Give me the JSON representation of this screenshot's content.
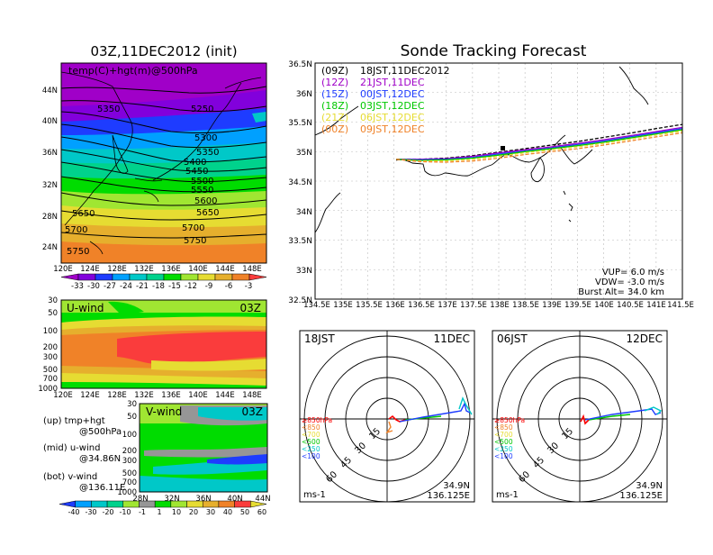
{
  "left_title": "03Z,11DEC2012 (init)",
  "right_title": "Sonde Tracking Forecast",
  "map_panel": {
    "label": "temp(C)+hgt(m)@500hPa",
    "lat_ticks": [
      "44N",
      "40N",
      "36N",
      "32N",
      "28N",
      "24N"
    ],
    "lon_ticks": [
      "120E",
      "124E",
      "128E",
      "132E",
      "136E",
      "140E",
      "144E",
      "148E"
    ],
    "contour_labels": [
      "5250",
      "5300",
      "5350",
      "5350",
      "5400",
      "5450",
      "5500",
      "5550",
      "5600",
      "5650",
      "5650",
      "5700",
      "5700",
      "5750",
      "5750"
    ],
    "colorbar_ticks": [
      "-33",
      "-30",
      "-27",
      "-24",
      "-21",
      "-18",
      "-15",
      "-12",
      "-9",
      "-6",
      "-3"
    ],
    "colorbar_colors": [
      "#a000c8",
      "#8200dc",
      "#1e3cff",
      "#00a0ff",
      "#00c8c8",
      "#00d28c",
      "#00dc00",
      "#a0e632",
      "#e6dc32",
      "#e6af2d",
      "#f08228",
      "#fa3c3c"
    ]
  },
  "uwind_panel": {
    "label": "U-wind",
    "time": "03Z",
    "y_ticks": [
      "30",
      "50",
      "100",
      "200",
      "300",
      "500",
      "700",
      "1000"
    ],
    "x_ticks": [
      "120E",
      "124E",
      "128E",
      "132E",
      "136E",
      "140E",
      "144E",
      "148E"
    ]
  },
  "vwind_panel": {
    "label": "V-wind",
    "time": "03Z",
    "y_ticks": [
      "30",
      "50",
      "100",
      "200",
      "300",
      "500",
      "700",
      "1000"
    ],
    "x_ticks": [
      "28N",
      "32N",
      "36N",
      "40N",
      "44N"
    ],
    "colorbar_ticks": [
      "-40",
      "-30",
      "-20",
      "-10",
      "-1",
      "1",
      "10",
      "20",
      "30",
      "40",
      "50",
      "60"
    ],
    "colorbar_colors": [
      "#1e3cff",
      "#00a0ff",
      "#00c8c8",
      "#00d28c",
      "#a0e632",
      "#969696",
      "#00dc00",
      "#a0e632",
      "#e6dc32",
      "#e6af2d",
      "#f08228",
      "#fa3c3c",
      "#e6dc32"
    ]
  },
  "notes": {
    "up_1": "(up) tmp+hgt",
    "up_2": "@500hPa",
    "mid_1": "(mid) u-wind",
    "mid_2": "@34.86N",
    "bot_1": "(bot) v-wind",
    "bot_2": "@136.11E"
  },
  "track_panel": {
    "y_ticks": [
      "36.5N",
      "36N",
      "35.5N",
      "35N",
      "34.5N",
      "34N",
      "33.5N",
      "33N",
      "32.5N"
    ],
    "x_ticks": [
      "134.5E",
      "135E",
      "135.5E",
      "136E",
      "136.5E",
      "137E",
      "137.5E",
      "138E",
      "138.5E",
      "139E",
      "139.5E",
      "140E",
      "140.5E",
      "141E",
      "141.5E"
    ],
    "legend": [
      {
        "run": "(09Z)",
        "time": "18JST,11DEC2012",
        "color": "#000000"
      },
      {
        "run": "(12Z)",
        "time": "21JST,11DEC",
        "color": "#a000c8"
      },
      {
        "run": "(15Z)",
        "time": "00JST,12DEC",
        "color": "#1e3cff"
      },
      {
        "run": "(18Z)",
        "time": "03JST,12DEC",
        "color": "#00c800"
      },
      {
        "run": "(21Z)",
        "time": "06JST,12DEC",
        "color": "#e6dc32"
      },
      {
        "run": "(00Z)",
        "time": "09JST,12DEC",
        "color": "#f08228"
      }
    ],
    "vup": "VUP=  6.0  m/s",
    "vdw": "VDW= -3.0  m/s",
    "burst": "Burst Alt= 34.0  km"
  },
  "polar_left": {
    "time": "18JST",
    "date": "11DEC",
    "ring_labels": [
      "15",
      "30",
      "45",
      "60"
    ],
    "unit": "ms-1",
    "lat": "34.9N",
    "lon": "136.125E"
  },
  "polar_right": {
    "time": "06JST",
    "date": "12DEC",
    "ring_labels": [
      "15",
      "30",
      "45",
      "60"
    ],
    "unit": "ms-1",
    "lat": "34.9N",
    "lon": "136.125E"
  },
  "pressure_legend": [
    {
      "label": "≥850hPa",
      "color": "#fa0000"
    },
    {
      "label": "<850",
      "color": "#f08228"
    },
    {
      "label": "<700",
      "color": "#e6dc32"
    },
    {
      "label": "<500",
      "color": "#00c800"
    },
    {
      "label": "<250",
      "color": "#00c8c8"
    },
    {
      "label": "<100",
      "color": "#1e3cff"
    }
  ],
  "chart_data": [
    {
      "type": "heatmap",
      "title": "03Z,11DEC2012 (init)",
      "variable": "temp(C)+hgt(m)@500hPa",
      "xlim": [
        "120E",
        "150E"
      ],
      "ylim": [
        "22N",
        "48N"
      ],
      "colorbar_levels": [
        -33,
        -30,
        -27,
        -24,
        -21,
        -18,
        -15,
        -12,
        -9,
        -6,
        -3
      ],
      "contour_labels": [
        5250,
        5300,
        5350,
        5400,
        5450,
        5500,
        5550,
        5600,
        5650,
        5700,
        5750
      ]
    },
    {
      "type": "heatmap",
      "title": "U-wind",
      "time": "03Z",
      "y_pressure_hPa": [
        30,
        50,
        100,
        200,
        300,
        500,
        700,
        1000
      ],
      "xlim": [
        "120E",
        "150E"
      ]
    },
    {
      "type": "heatmap",
      "title": "V-wind",
      "time": "03Z",
      "y_pressure_hPa": [
        30,
        50,
        100,
        200,
        300,
        500,
        700,
        1000
      ],
      "xlim": [
        "28N",
        "44N"
      ],
      "colorbar_levels": [
        -40,
        -30,
        -20,
        -10,
        -1,
        1,
        10,
        20,
        30,
        40,
        50,
        60
      ]
    },
    {
      "type": "line",
      "title": "Sonde Tracking Forecast",
      "xlim": [
        134.5,
        141.5
      ],
      "ylim": [
        32.5,
        36.5
      ],
      "series": [
        {
          "name": "(09Z) 18JST,11DEC2012",
          "x": [
            136.05,
            136.5,
            137.0,
            137.5,
            138.0,
            138.5,
            139.0,
            139.5,
            140.0,
            140.5,
            141.0,
            141.5
          ],
          "y": [
            34.87,
            34.87,
            34.89,
            34.93,
            34.99,
            35.05,
            35.11,
            35.17,
            35.24,
            35.31,
            35.39,
            35.46
          ]
        },
        {
          "name": "(12Z) 21JST,11DEC",
          "x": [
            136.05,
            136.5,
            137.0,
            137.5,
            138.0,
            138.5,
            139.0,
            139.5,
            140.0,
            140.5,
            141.0,
            141.5
          ],
          "y": [
            34.87,
            34.87,
            34.88,
            34.92,
            34.98,
            35.03,
            35.08,
            35.14,
            35.2,
            35.27,
            35.34,
            35.41
          ]
        },
        {
          "name": "(15Z) 00JST,12DEC",
          "x": [
            136.05,
            136.5,
            137.0,
            137.5,
            138.0,
            138.5,
            139.0,
            139.5,
            140.0,
            140.5,
            141.0,
            141.5
          ],
          "y": [
            34.87,
            34.86,
            34.87,
            34.9,
            34.96,
            35.01,
            35.06,
            35.12,
            35.18,
            35.25,
            35.32,
            35.39
          ]
        },
        {
          "name": "(18Z) 03JST,12DEC",
          "x": [
            136.05,
            136.5,
            137.0,
            137.5,
            138.0,
            138.5,
            139.0,
            139.5,
            140.0,
            140.5,
            141.0,
            141.5
          ],
          "y": [
            34.87,
            34.85,
            34.86,
            34.89,
            34.94,
            35.0,
            35.05,
            35.1,
            35.16,
            35.23,
            35.3,
            35.37
          ]
        },
        {
          "name": "(21Z) 06JST,12DEC",
          "x": [
            136.05,
            136.5,
            137.0,
            137.5,
            138.0,
            138.5,
            139.0,
            139.5,
            140.0,
            140.5,
            141.0,
            141.5
          ],
          "y": [
            34.87,
            34.84,
            34.84,
            34.87,
            34.92,
            34.98,
            35.03,
            35.08,
            35.14,
            35.21,
            35.28,
            35.35
          ]
        },
        {
          "name": "(00Z) 09JST,12DEC",
          "x": [
            136.05,
            136.5,
            137.0,
            137.5,
            138.0,
            138.5,
            139.0,
            139.5,
            140.0,
            140.5,
            141.0,
            141.5
          ],
          "y": [
            34.87,
            34.83,
            34.82,
            34.84,
            34.89,
            34.95,
            35.0,
            35.05,
            35.11,
            35.18,
            35.25,
            35.32
          ]
        }
      ],
      "vup_m_s": 6.0,
      "vdw_m_s": -3.0,
      "burst_alt_km": 34.0
    }
  ]
}
